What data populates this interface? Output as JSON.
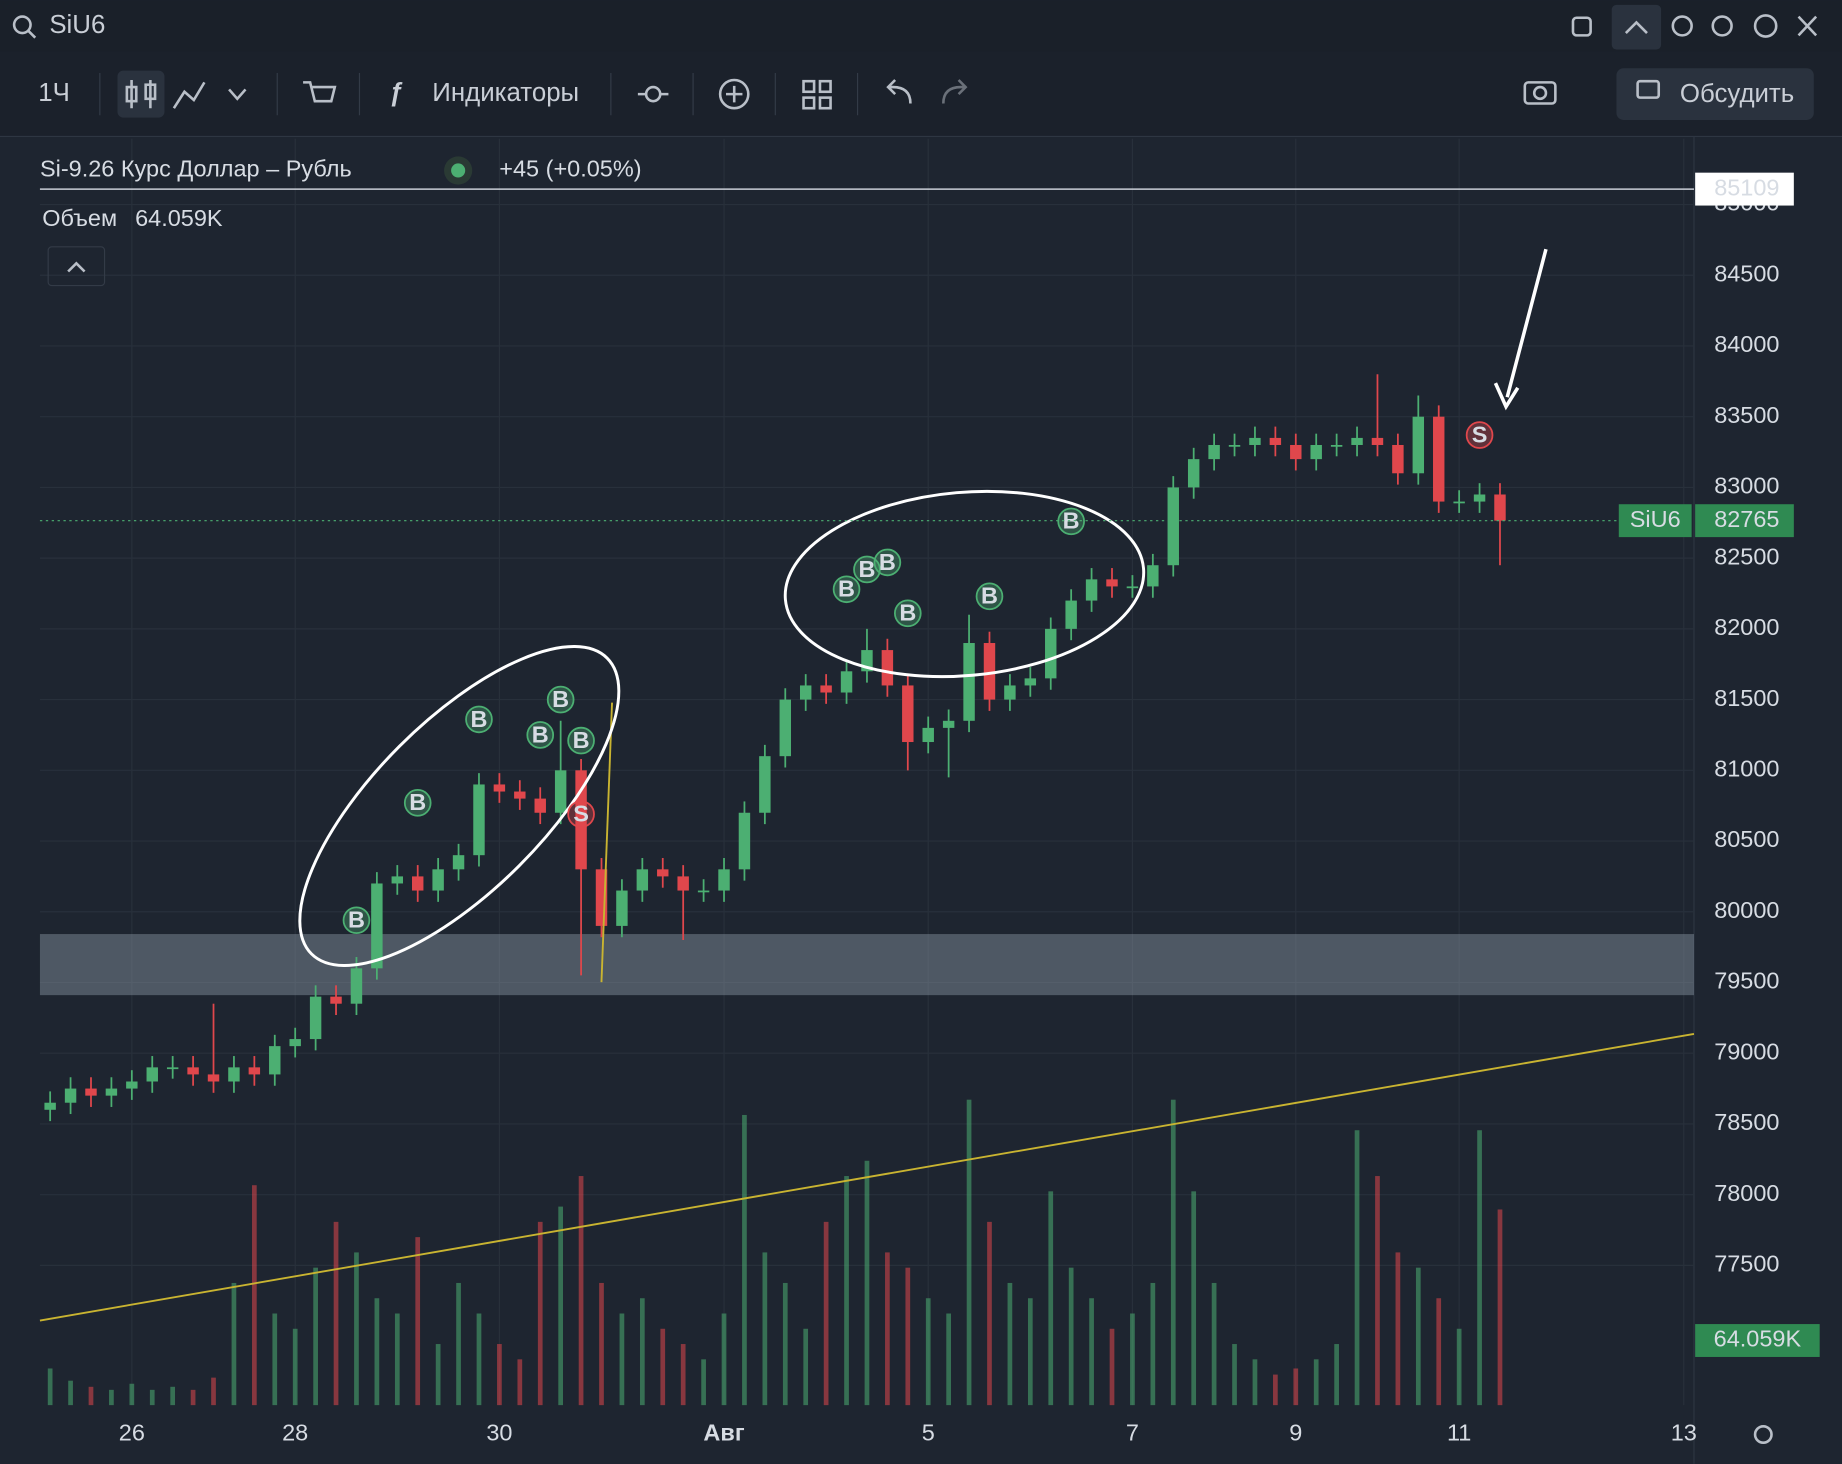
{
  "toolbar": {
    "symbol": "SiU6",
    "interval": "1Ч",
    "indicators": "Индикаторы",
    "discuss": "Обсудить"
  },
  "chart_data": {
    "type": "candlestick",
    "title": "Si-9.26 Курс Доллар – Рубль",
    "change": "+45 (+0.05%)",
    "volume_title": "Объем",
    "volume_label": "64.059K",
    "symbol_label": "SiU6",
    "last_price": 82765,
    "high_line": 85109,
    "up_color": "#4caf72",
    "down_color": "#e0474c",
    "ylim": [
      76512,
      85465
    ],
    "yticks": [
      77500,
      78000,
      78500,
      79000,
      79500,
      80000,
      80500,
      81000,
      81500,
      82000,
      82500,
      83000,
      83500,
      84000,
      84500,
      85000
    ],
    "grid": true,
    "categories": [
      null,
      null,
      null,
      null,
      "26",
      null,
      null,
      null,
      null,
      null,
      null,
      null,
      "28",
      null,
      null,
      null,
      null,
      null,
      null,
      null,
      null,
      null,
      "30",
      null,
      null,
      null,
      null,
      null,
      null,
      null,
      null,
      null,
      null,
      "Авг",
      null,
      null,
      null,
      null,
      null,
      null,
      null,
      null,
      null,
      "5",
      null,
      null,
      null,
      null,
      null,
      null,
      null,
      null,
      null,
      "7",
      null,
      null,
      null,
      null,
      null,
      null,
      null,
      "9",
      null,
      null,
      null,
      null,
      null,
      null,
      null,
      "11",
      null,
      null,
      null,
      null,
      null,
      null,
      null,
      null,
      null,
      null,
      "13"
    ],
    "open": [
      78600,
      78650,
      78750,
      78700,
      78750,
      78800,
      78900,
      78900,
      78850,
      78800,
      78900,
      78850,
      79050,
      79100,
      79400,
      79350,
      79600,
      80200,
      80250,
      80150,
      80300,
      80400,
      80900,
      80850,
      80800,
      80700,
      81000,
      80300,
      79900,
      80150,
      80300,
      80250,
      80150,
      80150,
      80300,
      80700,
      81100,
      81500,
      81600,
      81550,
      81700,
      81850,
      81600,
      81200,
      81300,
      81350,
      81900,
      81500,
      81600,
      81650,
      82000,
      82200,
      82350,
      82300,
      82300,
      82450,
      83000,
      83200,
      83300,
      83300,
      83350,
      83300,
      83200,
      83300,
      83300,
      83350,
      83300,
      83100,
      83500,
      82900,
      82900,
      82950,
      null,
      null,
      null,
      null,
      null,
      null,
      null,
      null,
      null
    ],
    "high": [
      78730,
      78830,
      78830,
      78830,
      78880,
      78980,
      78980,
      78980,
      79350,
      78980,
      78980,
      79130,
      79180,
      79480,
      79480,
      79680,
      80280,
      80330,
      80330,
      80380,
      80480,
      80980,
      80980,
      80930,
      80880,
      81350,
      81080,
      80380,
      80230,
      80380,
      80380,
      80330,
      80230,
      80380,
      80780,
      81180,
      81580,
      81680,
      81680,
      81780,
      82000,
      81930,
      81680,
      81380,
      81430,
      82100,
      81980,
      81680,
      81730,
      82080,
      82280,
      82430,
      82430,
      82380,
      82530,
      83080,
      83280,
      83380,
      83380,
      83430,
      83430,
      83380,
      83380,
      83380,
      83430,
      83800,
      83380,
      83650,
      83580,
      82980,
      83030,
      83030,
      null,
      null,
      null,
      null,
      null,
      null,
      null,
      null,
      null
    ],
    "low": [
      78520,
      78570,
      78620,
      78620,
      78670,
      78720,
      78820,
      78770,
      78720,
      78720,
      78770,
      78770,
      78970,
      79020,
      79270,
      79270,
      79520,
      80120,
      80070,
      80070,
      80220,
      80320,
      80770,
      80720,
      80620,
      80620,
      79550,
      79820,
      79820,
      80070,
      80170,
      79800,
      80070,
      80070,
      80220,
      80620,
      81020,
      81420,
      81470,
      81470,
      81620,
      81520,
      81000,
      81120,
      80950,
      81270,
      81420,
      81420,
      81520,
      81570,
      81920,
      82120,
      82220,
      82220,
      82220,
      82370,
      82920,
      83120,
      83220,
      83220,
      83220,
      83120,
      83120,
      83220,
      83220,
      83220,
      83020,
      83020,
      82820,
      82820,
      82820,
      82450,
      null,
      null,
      null,
      null,
      null,
      null,
      null,
      null,
      null
    ],
    "close": [
      78650,
      78750,
      78700,
      78750,
      78800,
      78900,
      78900,
      78850,
      78800,
      78900,
      78850,
      79050,
      79100,
      79400,
      79350,
      79600,
      80200,
      80250,
      80150,
      80300,
      80400,
      80900,
      80850,
      80800,
      80700,
      81000,
      80300,
      79900,
      80150,
      80300,
      80250,
      80150,
      80150,
      80300,
      80700,
      81100,
      81500,
      81600,
      81550,
      81700,
      81850,
      81600,
      81200,
      81300,
      81350,
      81900,
      81500,
      81600,
      81650,
      82000,
      82200,
      82350,
      82300,
      82300,
      82450,
      83000,
      83200,
      83300,
      83300,
      83350,
      83300,
      83200,
      83300,
      83300,
      83350,
      83300,
      83100,
      83500,
      82900,
      82900,
      82950,
      82765,
      null,
      null,
      null,
      null,
      null,
      null,
      null,
      null,
      null
    ],
    "volume": [
      12000,
      8000,
      6000,
      5000,
      7000,
      5000,
      6000,
      5000,
      9000,
      40000,
      72000,
      30000,
      25000,
      45000,
      60000,
      50000,
      35000,
      30000,
      55000,
      20000,
      40000,
      30000,
      20000,
      15000,
      60000,
      65000,
      75000,
      40000,
      30000,
      35000,
      25000,
      20000,
      15000,
      30000,
      95000,
      50000,
      40000,
      25000,
      60000,
      75000,
      80000,
      50000,
      45000,
      35000,
      30000,
      100000,
      60000,
      40000,
      35000,
      70000,
      45000,
      35000,
      25000,
      30000,
      40000,
      100000,
      70000,
      40000,
      20000,
      15000,
      10000,
      12000,
      15000,
      20000,
      90000,
      75000,
      50000,
      45000,
      35000,
      25000,
      90000,
      64059,
      null,
      null,
      null,
      null,
      null,
      null,
      null,
      null,
      null
    ],
    "markers": [
      {
        "label": "B",
        "color": "#4caf72",
        "values": [
          null,
          null,
          null,
          null,
          null,
          null,
          null,
          null,
          null,
          null,
          null,
          null,
          null,
          null,
          null,
          79940,
          null,
          null,
          80770,
          null,
          null,
          81360,
          null,
          null,
          81250,
          81500,
          81210,
          null,
          null,
          null,
          null,
          null,
          null,
          null,
          null,
          null,
          null,
          null,
          null,
          82280,
          82420,
          82470,
          82110,
          null,
          null,
          null,
          82230,
          null,
          null,
          null,
          82760,
          null,
          null,
          null,
          null,
          null,
          null,
          null,
          null,
          null,
          null,
          null,
          null,
          null,
          null,
          null,
          null,
          null,
          null,
          null,
          null,
          null,
          null,
          null,
          null,
          null,
          null,
          null,
          null,
          null,
          null
        ]
      },
      {
        "label": "S",
        "color": "#e0474c",
        "values": [
          null,
          null,
          null,
          null,
          null,
          null,
          null,
          null,
          null,
          null,
          null,
          null,
          null,
          null,
          null,
          null,
          null,
          null,
          null,
          null,
          null,
          null,
          null,
          null,
          null,
          null,
          80690,
          null,
          null,
          null,
          null,
          null,
          null,
          null,
          null,
          null,
          null,
          null,
          null,
          null,
          null,
          null,
          null,
          null,
          null,
          null,
          null,
          null,
          null,
          null,
          null,
          null,
          null,
          null,
          null,
          null,
          null,
          null,
          null,
          null,
          null,
          null,
          null,
          null,
          null,
          null,
          null,
          null,
          null,
          null,
          83370,
          null,
          null,
          null,
          null,
          null,
          null,
          null,
          null,
          null,
          null
        ]
      }
    ]
  }
}
